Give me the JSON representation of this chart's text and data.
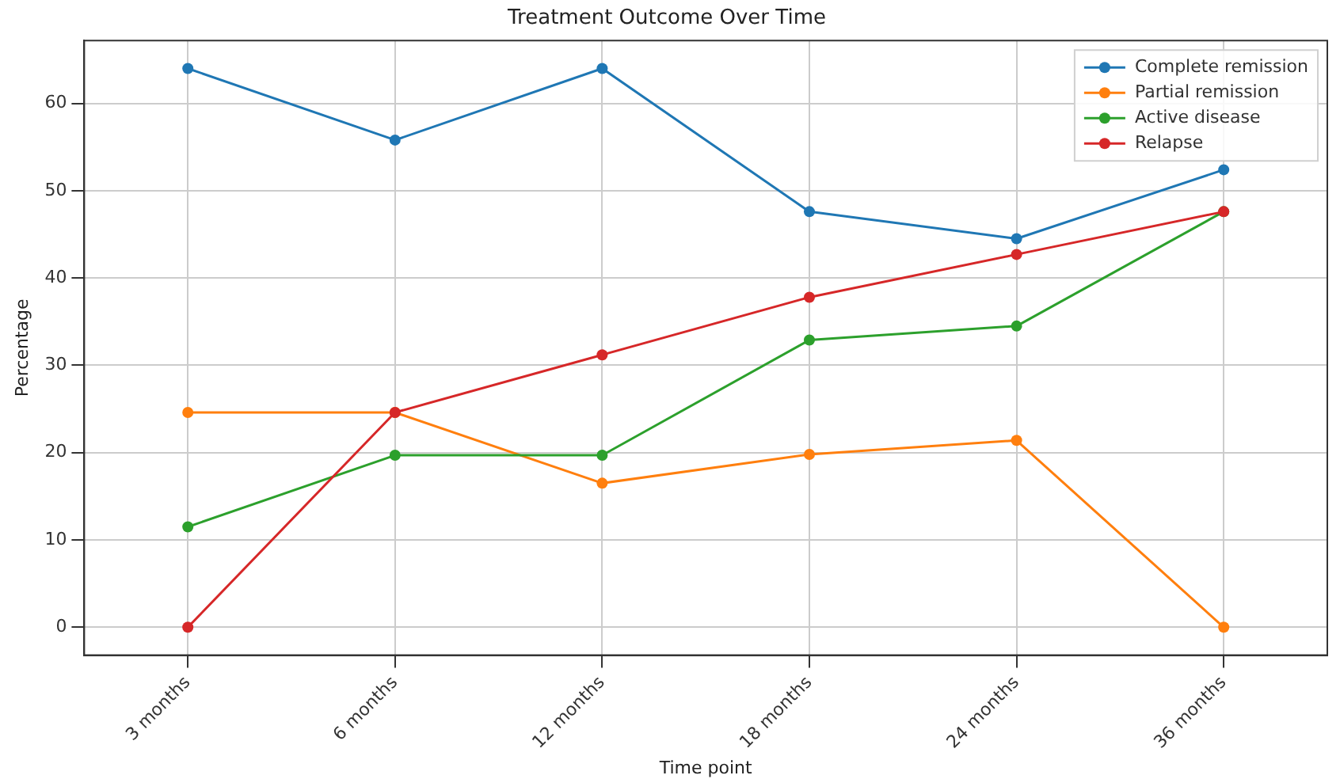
{
  "chart_data": {
    "type": "line",
    "title": "Treatment Outcome Over Time",
    "xlabel": "Time point",
    "ylabel": "Percentage",
    "categories": [
      "3 months",
      "6 months",
      "12 months",
      "18 months",
      "24 months",
      "36 months"
    ],
    "series": [
      {
        "name": "Complete remission",
        "color": "#1f77b4",
        "values": [
          64.0,
          55.8,
          64.0,
          47.6,
          44.5,
          52.4
        ]
      },
      {
        "name": "Partial remission",
        "color": "#ff7f0e",
        "values": [
          24.6,
          24.6,
          16.5,
          19.8,
          21.4,
          0
        ]
      },
      {
        "name": "Active disease",
        "color": "#2ca02c",
        "values": [
          11.5,
          19.7,
          19.7,
          32.9,
          34.5,
          47.6
        ]
      },
      {
        "name": "Relapse",
        "color": "#d62728",
        "values": [
          0,
          24.6,
          31.2,
          37.8,
          42.7,
          47.6
        ]
      }
    ],
    "ylim": [
      -3.2,
      67.2
    ],
    "yticks": [
      0,
      10,
      20,
      30,
      40,
      50,
      60
    ],
    "grid": true,
    "legend": "top right",
    "marker": "circle",
    "line_style": "solid"
  }
}
